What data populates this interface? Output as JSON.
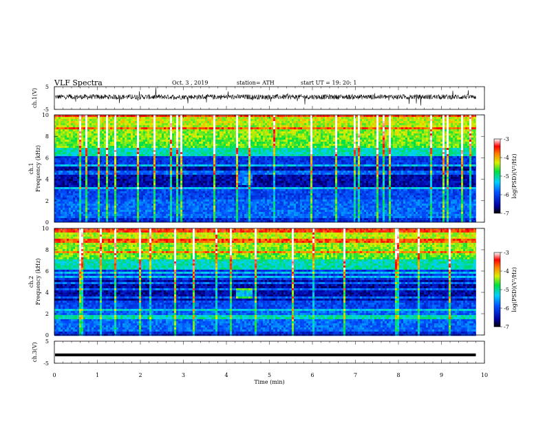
{
  "header": {
    "title": "VLF  Spectra",
    "date": "Oct. 3  , 2019",
    "station": "station= ATH",
    "start": "start  UT  =    19: 20: 1"
  },
  "chart_data": [
    {
      "type": "line",
      "name": "ch1-waveform",
      "ylabel": "ch.1(V)",
      "yticks": [
        "5",
        "-5"
      ],
      "ylim": [
        -5,
        5
      ],
      "xlim": [
        0,
        10
      ],
      "data_end_min": 9.8,
      "description_level": 0.5
    },
    {
      "type": "heatmap",
      "name": "ch1-spectrogram",
      "ylabel": "ch.1\nFrequency  (kHz)",
      "ylim": [
        0,
        10
      ],
      "yticks": [
        "0",
        "2",
        "4",
        "6",
        "8",
        "10"
      ],
      "xlim": [
        0,
        10
      ],
      "data_end_min": 9.8,
      "colorbar": {
        "label": "log(PSD)(V²/Hz)",
        "ticks": [
          "-3",
          "-4",
          "-5",
          "-6",
          "-7"
        ],
        "range": [
          -7,
          -3
        ]
      }
    },
    {
      "type": "heatmap",
      "name": "ch2-spectrogram",
      "ylabel": "ch.2\nFrequency  (kHz)",
      "ylim": [
        0,
        10
      ],
      "yticks": [
        "0",
        "2",
        "4",
        "6",
        "8",
        "10"
      ],
      "xlim": [
        0,
        10
      ],
      "data_end_min": 9.8,
      "colorbar": {
        "label": "log(PSD)(V²/Hz)",
        "ticks": [
          "-3",
          "-4",
          "-5",
          "-6",
          "-7"
        ],
        "range": [
          -7,
          -3
        ]
      }
    },
    {
      "type": "line",
      "name": "ch3-waveform",
      "ylabel": "ch.3(V)",
      "yticks": [
        "5",
        "-5"
      ],
      "ylim": [
        -5,
        5
      ],
      "xlim": [
        0,
        10
      ],
      "data_end_min": 9.8,
      "constant_value": -1.2
    }
  ],
  "xaxis": {
    "label": "Time  (min)",
    "ticks": [
      "0",
      "1",
      "2",
      "3",
      "4",
      "5",
      "6",
      "7",
      "8",
      "9",
      "10"
    ],
    "range": [
      0,
      10
    ]
  }
}
